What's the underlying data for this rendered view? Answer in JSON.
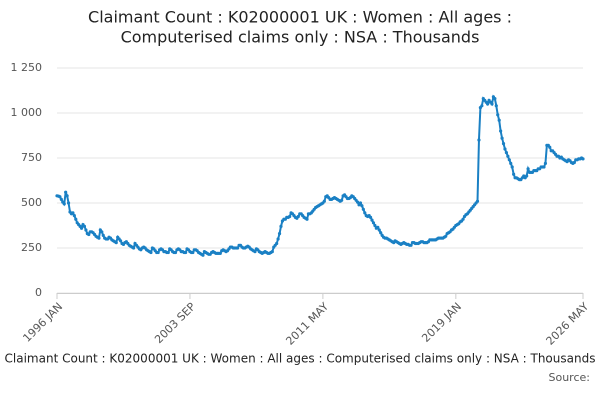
{
  "chart_data": {
    "type": "line",
    "title": [
      "Claimant Count : K02000001 UK : Women : All ages :",
      "Computerised claims only : NSA : Thousands"
    ],
    "footer": "Claimant Count : K02000001 UK : Women : All ages : Computerised claims only : NSA : Thousands",
    "source": "Source:",
    "categories": [
      "1996 JAN",
      null,
      null,
      null,
      null,
      null,
      null,
      null,
      null,
      null,
      null,
      null,
      null,
      null,
      null,
      null,
      null,
      null,
      null,
      null,
      null,
      null,
      null,
      null,
      null,
      null,
      null,
      null,
      null,
      null,
      null,
      null,
      null,
      null,
      null,
      null,
      null,
      null,
      null,
      null,
      null,
      null,
      null,
      null,
      null,
      null,
      null,
      null,
      null,
      null,
      null,
      null,
      null,
      null,
      null,
      null,
      null,
      null,
      null,
      null,
      null,
      null,
      null,
      null,
      null,
      null,
      null,
      null,
      null,
      null,
      null,
      null,
      null,
      null,
      null,
      null,
      null,
      null,
      null,
      null,
      null,
      null,
      null,
      null,
      null,
      null,
      null,
      null,
      null,
      null,
      null,
      null,
      "2003 SEP",
      null,
      null,
      null,
      null,
      null,
      null,
      null,
      null,
      null,
      null,
      null,
      null,
      null,
      null,
      null,
      null,
      null,
      null,
      null,
      null,
      null,
      null,
      null,
      null,
      null,
      null,
      null,
      null,
      null,
      null,
      null,
      null,
      null,
      null,
      null,
      null,
      null,
      null,
      null,
      null,
      null,
      null,
      null,
      null,
      null,
      null,
      null,
      null,
      null,
      null,
      null,
      null,
      null,
      null,
      null,
      null,
      null,
      null,
      null,
      null,
      null,
      null,
      null,
      null,
      null,
      null,
      null,
      null,
      null,
      null,
      null,
      null,
      null,
      null,
      null,
      null,
      null,
      null,
      null,
      null,
      null,
      null,
      null,
      null,
      null,
      null,
      null,
      null,
      null,
      null,
      null,
      "2011 MAY",
      null,
      null,
      null,
      null,
      null,
      null,
      null,
      null,
      null,
      null,
      null,
      null,
      null,
      null,
      null,
      null,
      null,
      null,
      null,
      null,
      null,
      null,
      null,
      null,
      null,
      null,
      null,
      null,
      null,
      null,
      null,
      null,
      null,
      null,
      null,
      null,
      null,
      null,
      null,
      null,
      null,
      null,
      null,
      null,
      null,
      null,
      null,
      null,
      null,
      null,
      null,
      null,
      null,
      null,
      null,
      null,
      null,
      null,
      null,
      null,
      null,
      null,
      null,
      null,
      null,
      null,
      null,
      null,
      null,
      null,
      null,
      null,
      null,
      null,
      null,
      null,
      null,
      null,
      null,
      null,
      null,
      null,
      null,
      null,
      null,
      null,
      null,
      null,
      null,
      null,
      null,
      "2019 JAN",
      null,
      null,
      null,
      null,
      null,
      null,
      null,
      null,
      null,
      null,
      null,
      null,
      null,
      null,
      null,
      null,
      null,
      null,
      null,
      null,
      null,
      null,
      null,
      null,
      null,
      null,
      null,
      null,
      null,
      null,
      null,
      null,
      null,
      null,
      null,
      null,
      null,
      null,
      null,
      null,
      null,
      null,
      null,
      null,
      null,
      null,
      null,
      null,
      null,
      null,
      null,
      null,
      null,
      null,
      null,
      null,
      null,
      null,
      null,
      null,
      null,
      null,
      null,
      null,
      null,
      null,
      null,
      null,
      null,
      null,
      null,
      null,
      null,
      null,
      null,
      null,
      null,
      null,
      null,
      null,
      null,
      null,
      null,
      null,
      null,
      null,
      null,
      "2026 MAY"
    ],
    "series": [
      {
        "color": "#1a80c4",
        "values": [
          540,
          538,
          535,
          520,
          505,
          495,
          560,
          540,
          500,
          450,
          440,
          445,
          430,
          410,
          390,
          380,
          370,
          360,
          380,
          370,
          350,
          330,
          325,
          340,
          340,
          335,
          325,
          315,
          310,
          305,
          350,
          340,
          320,
          305,
          300,
          300,
          310,
          305,
          295,
          290,
          285,
          280,
          310,
          300,
          290,
          275,
          270,
          280,
          285,
          275,
          265,
          260,
          255,
          250,
          275,
          265,
          255,
          245,
          240,
          250,
          255,
          250,
          240,
          235,
          230,
          225,
          250,
          245,
          235,
          225,
          225,
          240,
          245,
          240,
          230,
          230,
          225,
          225,
          245,
          240,
          230,
          225,
          225,
          240,
          245,
          240,
          230,
          230,
          225,
          225,
          245,
          240,
          230,
          225,
          225,
          240,
          240,
          235,
          225,
          220,
          215,
          210,
          230,
          225,
          220,
          215,
          215,
          225,
          230,
          225,
          220,
          220,
          220,
          220,
          235,
          240,
          235,
          230,
          235,
          245,
          255,
          255,
          250,
          250,
          250,
          250,
          265,
          265,
          255,
          250,
          250,
          255,
          260,
          255,
          245,
          240,
          235,
          230,
          245,
          240,
          230,
          225,
          220,
          225,
          230,
          225,
          220,
          220,
          225,
          230,
          255,
          265,
          275,
          300,
          330,
          370,
          400,
          410,
          410,
          420,
          420,
          425,
          445,
          440,
          430,
          420,
          415,
          425,
          440,
          440,
          430,
          420,
          415,
          410,
          440,
          440,
          445,
          455,
          465,
          475,
          480,
          485,
          490,
          495,
          500,
          510,
          535,
          540,
          530,
          520,
          520,
          525,
          530,
          525,
          520,
          515,
          510,
          515,
          540,
          545,
          535,
          525,
          525,
          530,
          540,
          535,
          525,
          515,
          505,
          490,
          500,
          485,
          465,
          445,
          430,
          425,
          430,
          420,
          405,
          390,
          375,
          360,
          365,
          350,
          335,
          320,
          310,
          305,
          305,
          300,
          295,
          290,
          285,
          280,
          290,
          285,
          280,
          275,
          270,
          275,
          280,
          275,
          270,
          270,
          265,
          265,
          280,
          280,
          275,
          275,
          275,
          280,
          285,
          285,
          280,
          280,
          280,
          285,
          295,
          295,
          295,
          295,
          295,
          300,
          305,
          305,
          305,
          305,
          310,
          315,
          330,
          335,
          340,
          350,
          355,
          365,
          375,
          380,
          385,
          395,
          400,
          410,
          425,
          435,
          440,
          450,
          460,
          470,
          480,
          490,
          500,
          510,
          850,
          1030,
          1040,
          1080,
          1070,
          1060,
          1050,
          1070,
          1060,
          1050,
          1090,
          1080,
          1040,
          990,
          960,
          900,
          860,
          830,
          800,
          780,
          760,
          740,
          720,
          700,
          660,
          640,
          640,
          635,
          630,
          630,
          640,
          650,
          640,
          650,
          690,
          670,
          670,
          670,
          680,
          680,
          680,
          690,
          690,
          700,
          700,
          700,
          720,
          820,
          820,
          810,
          790,
          790,
          780,
          770,
          760,
          760,
          750,
          755,
          745,
          740,
          735,
          730,
          740,
          735,
          725,
          720,
          725,
          740,
          740,
          745,
          745,
          750,
          745
        ]
      }
    ],
    "ylim": [
      0,
      1250
    ],
    "yticks": [
      0,
      250,
      500,
      750,
      {
        "value": 1000,
        "label": "1 000"
      },
      {
        "value": 1250,
        "label": "1 250"
      }
    ],
    "grid": true
  }
}
